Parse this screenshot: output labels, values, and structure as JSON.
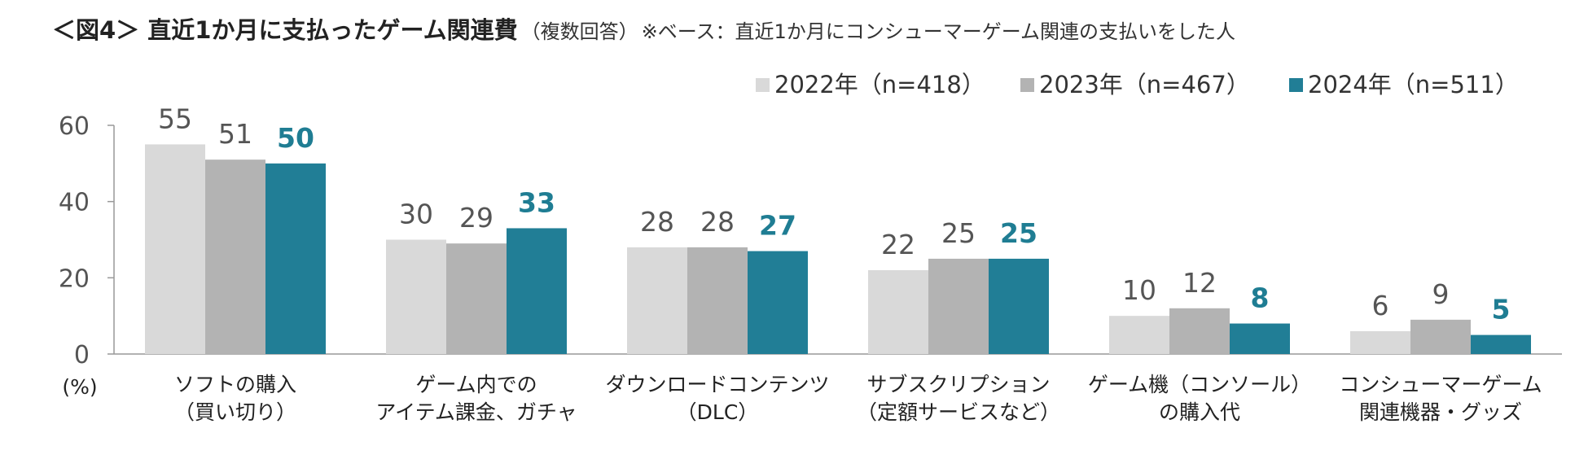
{
  "title": {
    "main": "＜図4＞ 直近1か月に支払ったゲーム関連費",
    "sub": "（複数回答）",
    "note": "※ベース：直近1か月にコンシューマーゲーム関連の支払いをした人"
  },
  "colors": {
    "s2022": "#d9d9d9",
    "s2023": "#b3b3b3",
    "s2024": "#217e96",
    "axis": "#999999"
  },
  "chart_data": {
    "type": "bar",
    "unit_label": "(%)",
    "ylim": [
      0,
      60
    ],
    "yticks": [
      "0",
      "20",
      "40",
      "60"
    ],
    "grid": false,
    "legend_position": "top-right",
    "legend": [
      "2022年（n=418）",
      "2023年（n=467）",
      "2024年（n=511）"
    ],
    "categories": [
      [
        "ソフトの購入",
        "（買い切り）"
      ],
      [
        "ゲーム内での",
        "アイテム課金、ガチャ"
      ],
      [
        "ダウンロードコンテンツ",
        "（DLC）"
      ],
      [
        "サブスクリプション",
        "（定額サービスなど）"
      ],
      [
        "ゲーム機（コンソール）",
        "の購入代"
      ],
      [
        "コンシューマーゲーム",
        "関連機器・グッズ"
      ]
    ],
    "series": [
      {
        "name": "2022年（n=418）",
        "values": [
          55,
          30,
          28,
          22,
          10,
          6
        ],
        "labels": [
          "55",
          "30",
          "28",
          "22",
          "10",
          "6"
        ]
      },
      {
        "name": "2023年（n=467）",
        "values": [
          51,
          29,
          28,
          25,
          12,
          9
        ],
        "labels": [
          "51",
          "29",
          "28",
          "25",
          "12",
          "9"
        ]
      },
      {
        "name": "2024年（n=511）",
        "values": [
          50,
          33,
          27,
          25,
          8,
          5
        ],
        "labels": [
          "50",
          "33",
          "27",
          "25",
          "8",
          "5"
        ]
      }
    ]
  }
}
